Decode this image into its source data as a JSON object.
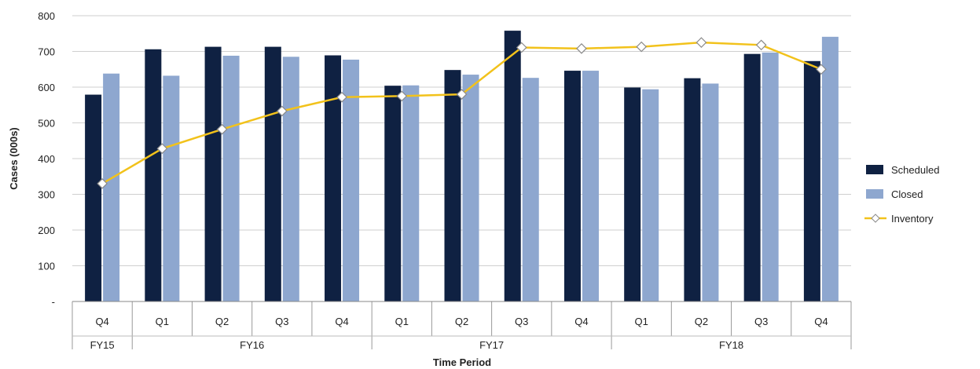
{
  "chart_data": {
    "type": "bar",
    "title": "",
    "xlabel": "Time Period",
    "ylabel": "Cases (000s)",
    "ylim": [
      0,
      800
    ],
    "ytick_step": 100,
    "ytick_labels": [
      "-",
      "100",
      "200",
      "300",
      "400",
      "500",
      "600",
      "700",
      "800"
    ],
    "grid": true,
    "legend_position": "right",
    "categories": [
      "Q4",
      "Q1",
      "Q2",
      "Q3",
      "Q4",
      "Q1",
      "Q2",
      "Q3",
      "Q4",
      "Q1",
      "Q2",
      "Q3",
      "Q4"
    ],
    "groups": [
      {
        "label": "FY15",
        "span": 1
      },
      {
        "label": "FY16",
        "span": 4
      },
      {
        "label": "FY17",
        "span": 4
      },
      {
        "label": "FY18",
        "span": 4
      }
    ],
    "series": [
      {
        "name": "Scheduled",
        "type": "bar",
        "color": "#0f2142",
        "values": [
          579,
          706,
          713,
          713,
          689,
          604,
          648,
          758,
          646,
          599,
          625,
          693,
          673
        ]
      },
      {
        "name": "Closed",
        "type": "bar",
        "color": "#8ea7cf",
        "values": [
          638,
          632,
          688,
          685,
          677,
          605,
          635,
          626,
          646,
          594,
          610,
          697,
          741
        ]
      },
      {
        "name": "Inventory",
        "type": "line",
        "color": "#f2c21b",
        "values": [
          330,
          428,
          482,
          533,
          572,
          575,
          580,
          711,
          708,
          713,
          725,
          718,
          650
        ]
      }
    ]
  }
}
